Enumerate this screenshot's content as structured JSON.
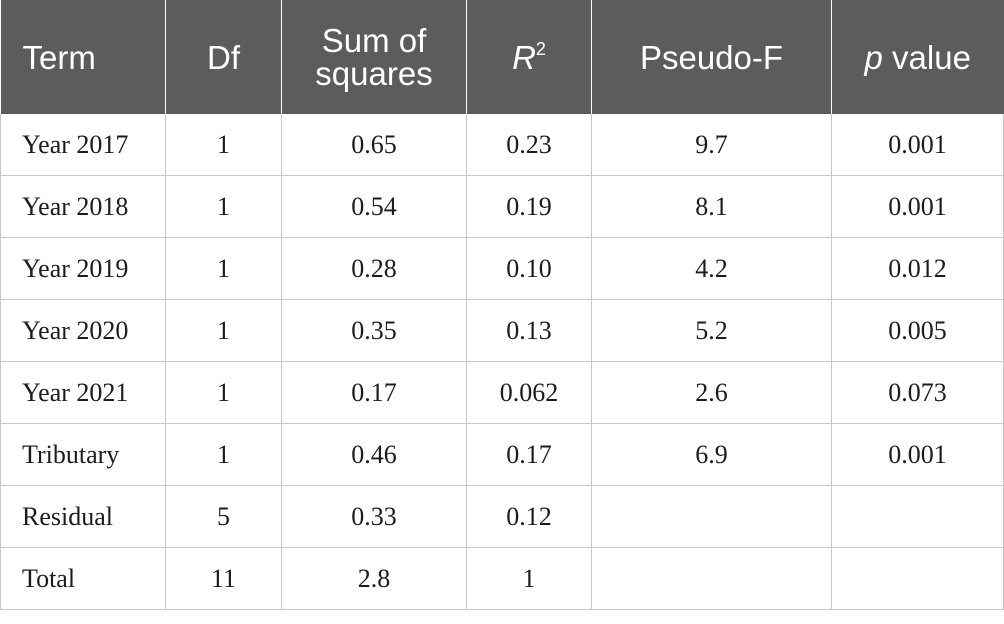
{
  "table": {
    "headers": {
      "term": "Term",
      "df": "Df",
      "ss_line1": "Sum of",
      "ss_line2": "squares",
      "r2_base": "R",
      "r2_sup": "2",
      "pseudo_f": "Pseudo-F",
      "p_italic": "p",
      "p_rest": " value"
    },
    "rows": [
      {
        "term": "Year 2017",
        "df": "1",
        "ss": "0.65",
        "r2": "0.23",
        "f": "9.7",
        "p": "0.001"
      },
      {
        "term": "Year 2018",
        "df": "1",
        "ss": "0.54",
        "r2": "0.19",
        "f": "8.1",
        "p": "0.001"
      },
      {
        "term": "Year 2019",
        "df": "1",
        "ss": "0.28",
        "r2": "0.10",
        "f": "4.2",
        "p": "0.012"
      },
      {
        "term": "Year 2020",
        "df": "1",
        "ss": "0.35",
        "r2": "0.13",
        "f": "5.2",
        "p": "0.005"
      },
      {
        "term": "Year 2021",
        "df": "1",
        "ss": "0.17",
        "r2": "0.062",
        "f": "2.6",
        "p": "0.073"
      },
      {
        "term": "Tributary",
        "df": "1",
        "ss": "0.46",
        "r2": "0.17",
        "f": "6.9",
        "p": "0.001"
      },
      {
        "term": "Residual",
        "df": "5",
        "ss": "0.33",
        "r2": "0.12",
        "f": "",
        "p": ""
      },
      {
        "term": "Total",
        "df": "11",
        "ss": "2.8",
        "r2": "1",
        "f": "",
        "p": ""
      }
    ]
  }
}
